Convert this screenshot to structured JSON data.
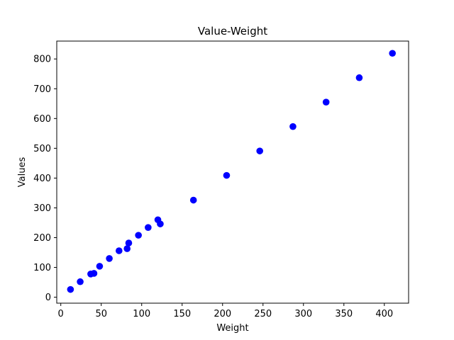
{
  "chart_data": {
    "type": "scatter",
    "title": "Value-Weight",
    "xlabel": "Weight",
    "ylabel": "Values",
    "xlim": [
      -5,
      430
    ],
    "ylim": [
      -20,
      860
    ],
    "xticks": [
      0,
      50,
      100,
      150,
      200,
      250,
      300,
      350,
      400
    ],
    "yticks": [
      0,
      100,
      200,
      300,
      400,
      500,
      600,
      700,
      800
    ],
    "grid": false,
    "marker_color": "#0000ff",
    "series": [
      {
        "points": [
          {
            "x": 12,
            "y": 26
          },
          {
            "x": 24,
            "y": 52
          },
          {
            "x": 37,
            "y": 78
          },
          {
            "x": 41,
            "y": 80
          },
          {
            "x": 48,
            "y": 104
          },
          {
            "x": 60,
            "y": 130
          },
          {
            "x": 72,
            "y": 156
          },
          {
            "x": 82,
            "y": 163
          },
          {
            "x": 84,
            "y": 182
          },
          {
            "x": 96,
            "y": 208
          },
          {
            "x": 108,
            "y": 234
          },
          {
            "x": 120,
            "y": 260
          },
          {
            "x": 123,
            "y": 246
          },
          {
            "x": 164,
            "y": 326
          },
          {
            "x": 205,
            "y": 409
          },
          {
            "x": 246,
            "y": 491
          },
          {
            "x": 287,
            "y": 573
          },
          {
            "x": 328,
            "y": 655
          },
          {
            "x": 369,
            "y": 737
          },
          {
            "x": 410,
            "y": 819
          }
        ]
      }
    ]
  }
}
